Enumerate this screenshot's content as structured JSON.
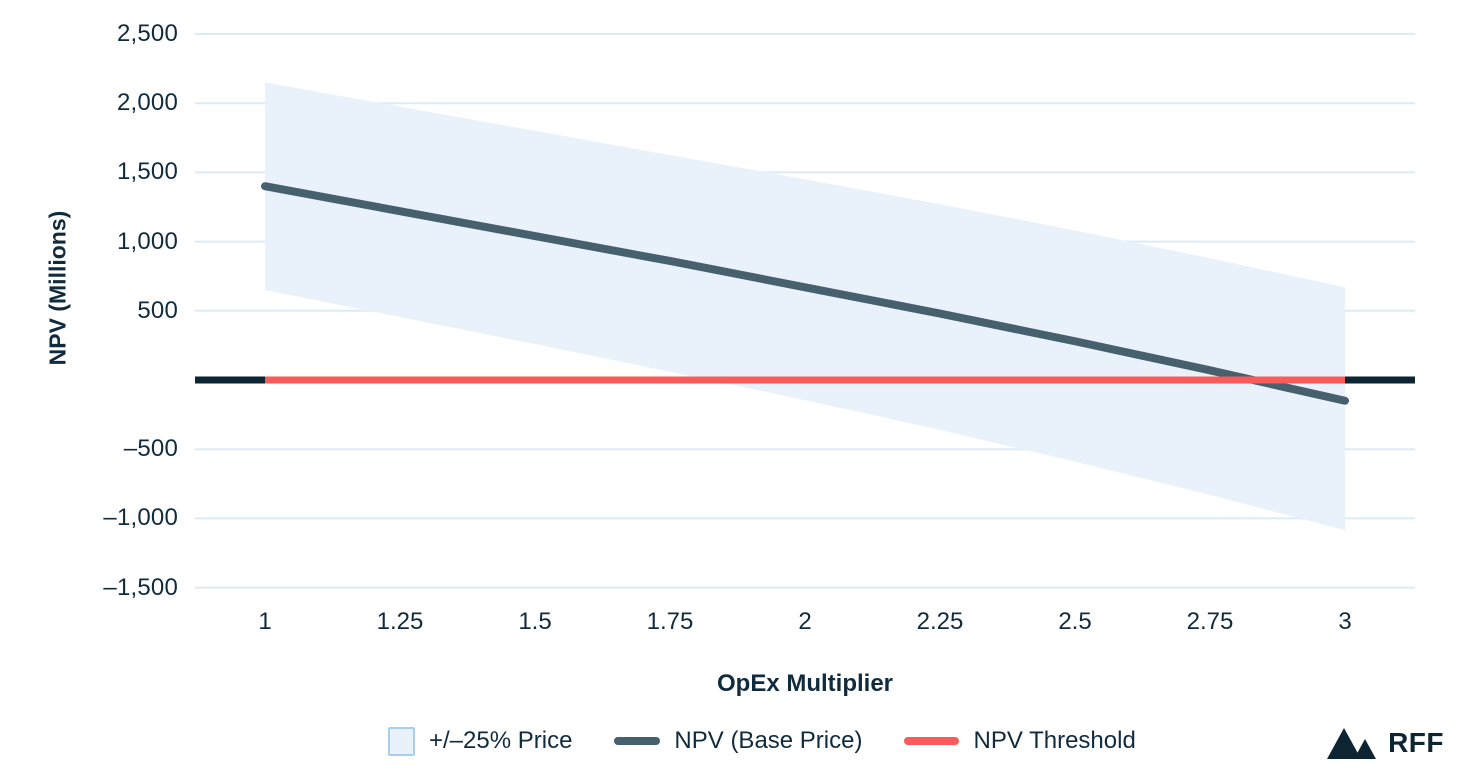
{
  "chart_data": {
    "type": "line",
    "title": "",
    "xlabel": "OpEx Multiplier",
    "ylabel": "NPV (Millions)",
    "x": [
      1,
      1.25,
      1.5,
      1.75,
      2,
      2.25,
      2.5,
      2.75,
      3
    ],
    "xlim": [
      0.87,
      3.13
    ],
    "ylim": [
      -1500,
      2500
    ],
    "grid": true,
    "legend_position": "bottom",
    "xticks": [
      {
        "v": 1,
        "label": "1"
      },
      {
        "v": 1.25,
        "label": "1.25"
      },
      {
        "v": 1.5,
        "label": "1.5"
      },
      {
        "v": 1.75,
        "label": "1.75"
      },
      {
        "v": 2,
        "label": "2"
      },
      {
        "v": 2.25,
        "label": "2.25"
      },
      {
        "v": 2.5,
        "label": "2.5"
      },
      {
        "v": 2.75,
        "label": "2.75"
      },
      {
        "v": 3,
        "label": "3"
      }
    ],
    "yticks": [
      {
        "v": 2500,
        "label": "2,500"
      },
      {
        "v": 2000,
        "label": "2,000"
      },
      {
        "v": 1500,
        "label": "1,500"
      },
      {
        "v": 1000,
        "label": "1,000"
      },
      {
        "v": 500,
        "label": "500"
      },
      {
        "v": 0,
        "label": ""
      },
      {
        "v": -500,
        "label": "–500"
      },
      {
        "v": -1000,
        "label": "–1,000"
      },
      {
        "v": -1500,
        "label": "–1,500"
      }
    ],
    "series": [
      {
        "name": "+/–25% Price",
        "type": "band",
        "fill": "#e9f1fb",
        "upper": [
          2150,
          1975,
          1800,
          1625,
          1450,
          1270,
          1080,
          880,
          670
        ],
        "lower": [
          650,
          455,
          260,
          60,
          -145,
          -360,
          -590,
          -830,
          -1085
        ]
      },
      {
        "name": "NPV (Base Price)",
        "type": "line",
        "color": "#46606e",
        "values": [
          1400,
          1220,
          1040,
          860,
          670,
          480,
          280,
          70,
          -150
        ]
      },
      {
        "name": "NPV Threshold",
        "type": "line",
        "color": "#fb5a5a",
        "values": [
          0,
          0,
          0,
          0,
          0,
          0,
          0,
          0,
          0
        ]
      }
    ]
  },
  "legend": {
    "items": [
      {
        "label": "+/–25% Price",
        "swatch": "band"
      },
      {
        "label": "NPV (Base Price)",
        "swatch": "line-dark"
      },
      {
        "label": "NPV Threshold",
        "swatch": "line-red"
      }
    ]
  },
  "branding": {
    "logo_text": "RFF"
  },
  "colors": {
    "text": "#112b3e",
    "grid": "#dcebf8",
    "band": "#e9f1fb",
    "band_border": "#a9cfee",
    "base_line": "#46606e",
    "threshold": "#fb5a5a",
    "axis_zero": "#0d2433"
  }
}
